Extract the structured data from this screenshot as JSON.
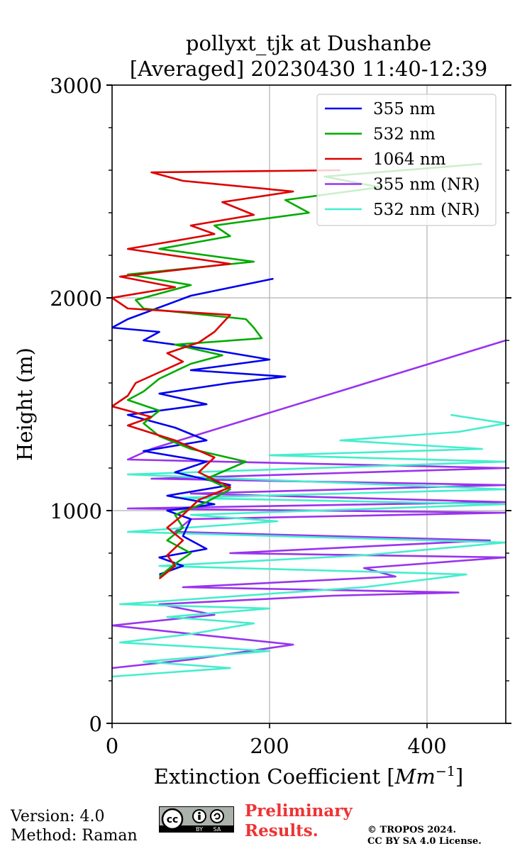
{
  "chart_data": {
    "type": "line",
    "title_line1": "pollyxt_tjk at Dushanbe",
    "title_line2": "[Averaged] 20230430 11:40-12:39",
    "xlabel": "Extinction Coefficient [Mm^-1]",
    "ylabel": "Height (m)",
    "xlim": [
      0,
      500
    ],
    "ylim": [
      0,
      3000
    ],
    "xticks": [
      0,
      200,
      400
    ],
    "yticks": [
      0,
      1000,
      2000,
      3000
    ],
    "grid": true,
    "legend_position": "top-right",
    "series": [
      {
        "name": "355 nm",
        "color": "#0000ee",
        "points": [
          [
            60,
            700
          ],
          [
            90,
            740
          ],
          [
            60,
            780
          ],
          [
            120,
            820
          ],
          [
            90,
            880
          ],
          [
            100,
            960
          ],
          [
            70,
            1000
          ],
          [
            130,
            1030
          ],
          [
            70,
            1070
          ],
          [
            150,
            1120
          ],
          [
            80,
            1180
          ],
          [
            120,
            1230
          ],
          [
            40,
            1280
          ],
          [
            120,
            1330
          ],
          [
            80,
            1390
          ],
          [
            20,
            1450
          ],
          [
            120,
            1500
          ],
          [
            60,
            1550
          ],
          [
            150,
            1600
          ],
          [
            220,
            1630
          ],
          [
            100,
            1660
          ],
          [
            200,
            1710
          ],
          [
            120,
            1760
          ],
          [
            40,
            1800
          ],
          [
            60,
            1840
          ],
          [
            0,
            1860
          ],
          [
            20,
            1900
          ],
          [
            100,
            2010
          ],
          [
            205,
            2090
          ]
        ]
      },
      {
        "name": "532 nm",
        "color": "#00aa00",
        "points": [
          [
            60,
            690
          ],
          [
            80,
            750
          ],
          [
            100,
            800
          ],
          [
            70,
            860
          ],
          [
            90,
            920
          ],
          [
            80,
            980
          ],
          [
            120,
            1040
          ],
          [
            150,
            1100
          ],
          [
            120,
            1150
          ],
          [
            170,
            1230
          ],
          [
            100,
            1290
          ],
          [
            60,
            1350
          ],
          [
            40,
            1410
          ],
          [
            60,
            1470
          ],
          [
            20,
            1520
          ],
          [
            40,
            1560
          ],
          [
            60,
            1620
          ],
          [
            100,
            1690
          ],
          [
            140,
            1730
          ],
          [
            80,
            1780
          ],
          [
            190,
            1810
          ],
          [
            180,
            1860
          ],
          [
            170,
            1900
          ],
          [
            40,
            1950
          ],
          [
            30,
            1990
          ],
          [
            100,
            2060
          ],
          [
            20,
            2110
          ],
          [
            180,
            2170
          ],
          [
            60,
            2230
          ],
          [
            150,
            2290
          ],
          [
            130,
            2340
          ],
          [
            250,
            2400
          ],
          [
            220,
            2460
          ],
          [
            340,
            2520
          ],
          [
            270,
            2570
          ],
          [
            470,
            2630
          ]
        ]
      },
      {
        "name": "1064 nm",
        "color": "#dd0000",
        "points": [
          [
            60,
            680
          ],
          [
            80,
            740
          ],
          [
            70,
            790
          ],
          [
            90,
            860
          ],
          [
            70,
            920
          ],
          [
            90,
            980
          ],
          [
            110,
            1050
          ],
          [
            150,
            1110
          ],
          [
            110,
            1180
          ],
          [
            130,
            1250
          ],
          [
            80,
            1330
          ],
          [
            20,
            1400
          ],
          [
            50,
            1440
          ],
          [
            0,
            1490
          ],
          [
            20,
            1540
          ],
          [
            30,
            1600
          ],
          [
            60,
            1650
          ],
          [
            90,
            1700
          ],
          [
            70,
            1740
          ],
          [
            110,
            1790
          ],
          [
            130,
            1840
          ],
          [
            140,
            1880
          ],
          [
            150,
            1920
          ],
          [
            20,
            1950
          ],
          [
            0,
            2000
          ],
          [
            80,
            2050
          ],
          [
            10,
            2100
          ],
          [
            150,
            2160
          ],
          [
            20,
            2230
          ],
          [
            130,
            2300
          ],
          [
            100,
            2340
          ],
          [
            180,
            2390
          ],
          [
            140,
            2450
          ],
          [
            230,
            2500
          ],
          [
            90,
            2550
          ],
          [
            50,
            2590
          ],
          [
            290,
            2600
          ]
        ]
      },
      {
        "name": "355 nm (NR)",
        "color": "#9933ee",
        "points": [
          [
            0,
            260
          ],
          [
            100,
            300
          ],
          [
            230,
            370
          ],
          [
            0,
            460
          ],
          [
            130,
            510
          ],
          [
            60,
            560
          ],
          [
            280,
            600
          ],
          [
            440,
            615
          ],
          [
            90,
            640
          ],
          [
            360,
            690
          ],
          [
            320,
            730
          ],
          [
            500,
            780
          ],
          [
            150,
            800
          ],
          [
            480,
            860
          ],
          [
            80,
            900
          ],
          [
            100,
            960
          ],
          [
            500,
            990
          ],
          [
            20,
            1010
          ],
          [
            500,
            1040
          ],
          [
            100,
            1080
          ],
          [
            500,
            1120
          ],
          [
            50,
            1150
          ],
          [
            500,
            1200
          ],
          [
            20,
            1240
          ],
          [
            50,
            1290
          ],
          [
            500,
            1800
          ]
        ]
      },
      {
        "name": "532 nm (NR)",
        "color": "#44eecc",
        "points": [
          [
            0,
            220
          ],
          [
            150,
            260
          ],
          [
            40,
            290
          ],
          [
            200,
            340
          ],
          [
            10,
            380
          ],
          [
            100,
            420
          ],
          [
            180,
            470
          ],
          [
            70,
            500
          ],
          [
            200,
            540
          ],
          [
            10,
            560
          ],
          [
            320,
            640
          ],
          [
            450,
            700
          ],
          [
            60,
            740
          ],
          [
            320,
            790
          ],
          [
            500,
            850
          ],
          [
            20,
            900
          ],
          [
            210,
            950
          ],
          [
            100,
            980
          ],
          [
            500,
            1030
          ],
          [
            80,
            1060
          ],
          [
            500,
            1100
          ],
          [
            20,
            1170
          ],
          [
            500,
            1230
          ],
          [
            200,
            1260
          ],
          [
            470,
            1290
          ],
          [
            290,
            1330
          ],
          [
            440,
            1370
          ],
          [
            500,
            1410
          ],
          [
            430,
            1450
          ]
        ]
      }
    ]
  },
  "footer": {
    "version": "Version: 4.0",
    "method": "Method: Raman",
    "preliminary_line1": "Preliminary",
    "preliminary_line2": "Results.",
    "copyright_line1": "© TROPOS 2024.",
    "copyright_line2": "CC BY SA 4.0 License.",
    "cc_labels": [
      "cc",
      "BY",
      "SA"
    ],
    "preliminary_color": "#ee3333"
  }
}
